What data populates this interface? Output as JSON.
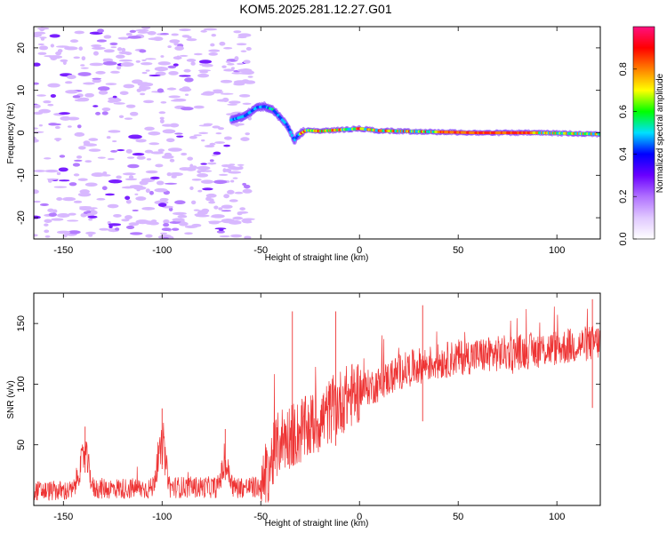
{
  "chart_data": [
    {
      "type": "heatmap",
      "title": "KOM5.2025.281.12.27.G01",
      "xlabel": "Height of straight line (km)",
      "ylabel": "Frequency (Hz)",
      "xlim": [
        -165,
        122
      ],
      "ylim": [
        -25,
        25
      ],
      "x_ticks": [
        -150,
        -100,
        -50,
        0,
        50,
        100
      ],
      "y_ticks": [
        -20,
        -10,
        0,
        10,
        20
      ],
      "colorbar": {
        "label": "Normalized spectral amplitude",
        "range": [
          0,
          1
        ],
        "ticks": [
          "0.0",
          "0.2",
          "0.4",
          "0.6",
          "0.8"
        ],
        "colors": [
          "#ffffff",
          "#e0c8ff",
          "#b070ff",
          "#6a00ff",
          "#0000ff",
          "#00e0ff",
          "#00ff00",
          "#ffff00",
          "#ff8000",
          "#ff0000",
          "#ff1080"
        ]
      },
      "signal_trace": [
        {
          "x": -65,
          "y": 3
        },
        {
          "x": -58,
          "y": 4
        },
        {
          "x": -52,
          "y": 6
        },
        {
          "x": -48,
          "y": 6.2
        },
        {
          "x": -44,
          "y": 5.5
        },
        {
          "x": -40,
          "y": 3.5
        },
        {
          "x": -37,
          "y": 2
        },
        {
          "x": -35,
          "y": 0.2
        },
        {
          "x": -33,
          "y": -1.8
        },
        {
          "x": -31,
          "y": -0.5
        },
        {
          "x": -27,
          "y": 0.6
        },
        {
          "x": -20,
          "y": 0.4
        },
        {
          "x": -10,
          "y": 0.7
        },
        {
          "x": 0,
          "y": 1.0
        },
        {
          "x": 10,
          "y": 0.5
        },
        {
          "x": 20,
          "y": 0.4
        },
        {
          "x": 40,
          "y": 0.2
        },
        {
          "x": 60,
          "y": 0
        },
        {
          "x": 90,
          "y": 0
        },
        {
          "x": 122,
          "y": -0.3
        }
      ],
      "noise_region": {
        "x_range": [
          -165,
          -55
        ],
        "y_range": [
          -25,
          25
        ]
      }
    },
    {
      "type": "line",
      "xlabel": "Height of straight line (km)",
      "ylabel": "SNR (v/v)",
      "xlim": [
        -165,
        122
      ],
      "ylim": [
        0,
        175
      ],
      "x_ticks": [
        -150,
        -100,
        -50,
        0,
        50,
        100
      ],
      "y_ticks": [
        50,
        100,
        150
      ],
      "color": "#ee3333",
      "trend": [
        {
          "x": -165,
          "y": 12
        },
        {
          "x": -145,
          "y": 12
        },
        {
          "x": -139,
          "y": 45
        },
        {
          "x": -135,
          "y": 14
        },
        {
          "x": -105,
          "y": 14
        },
        {
          "x": -100,
          "y": 50
        },
        {
          "x": -96,
          "y": 15
        },
        {
          "x": -72,
          "y": 15
        },
        {
          "x": -68,
          "y": 35
        },
        {
          "x": -64,
          "y": 15
        },
        {
          "x": -50,
          "y": 15
        },
        {
          "x": -45,
          "y": 35
        },
        {
          "x": -40,
          "y": 55
        },
        {
          "x": -30,
          "y": 60
        },
        {
          "x": -20,
          "y": 70
        },
        {
          "x": -10,
          "y": 85
        },
        {
          "x": 0,
          "y": 95
        },
        {
          "x": 10,
          "y": 100
        },
        {
          "x": 20,
          "y": 110
        },
        {
          "x": 30,
          "y": 115
        },
        {
          "x": 50,
          "y": 122
        },
        {
          "x": 70,
          "y": 125
        },
        {
          "x": 90,
          "y": 128
        },
        {
          "x": 110,
          "y": 132
        },
        {
          "x": 122,
          "y": 135
        }
      ],
      "peaks": [
        {
          "x": -139,
          "y": 65
        },
        {
          "x": -100,
          "y": 80
        },
        {
          "x": -68,
          "y": 63
        },
        {
          "x": -34,
          "y": 160
        },
        {
          "x": -12,
          "y": 160
        },
        {
          "x": 32,
          "y": 165
        },
        {
          "x": 118,
          "y": 170
        }
      ]
    }
  ]
}
